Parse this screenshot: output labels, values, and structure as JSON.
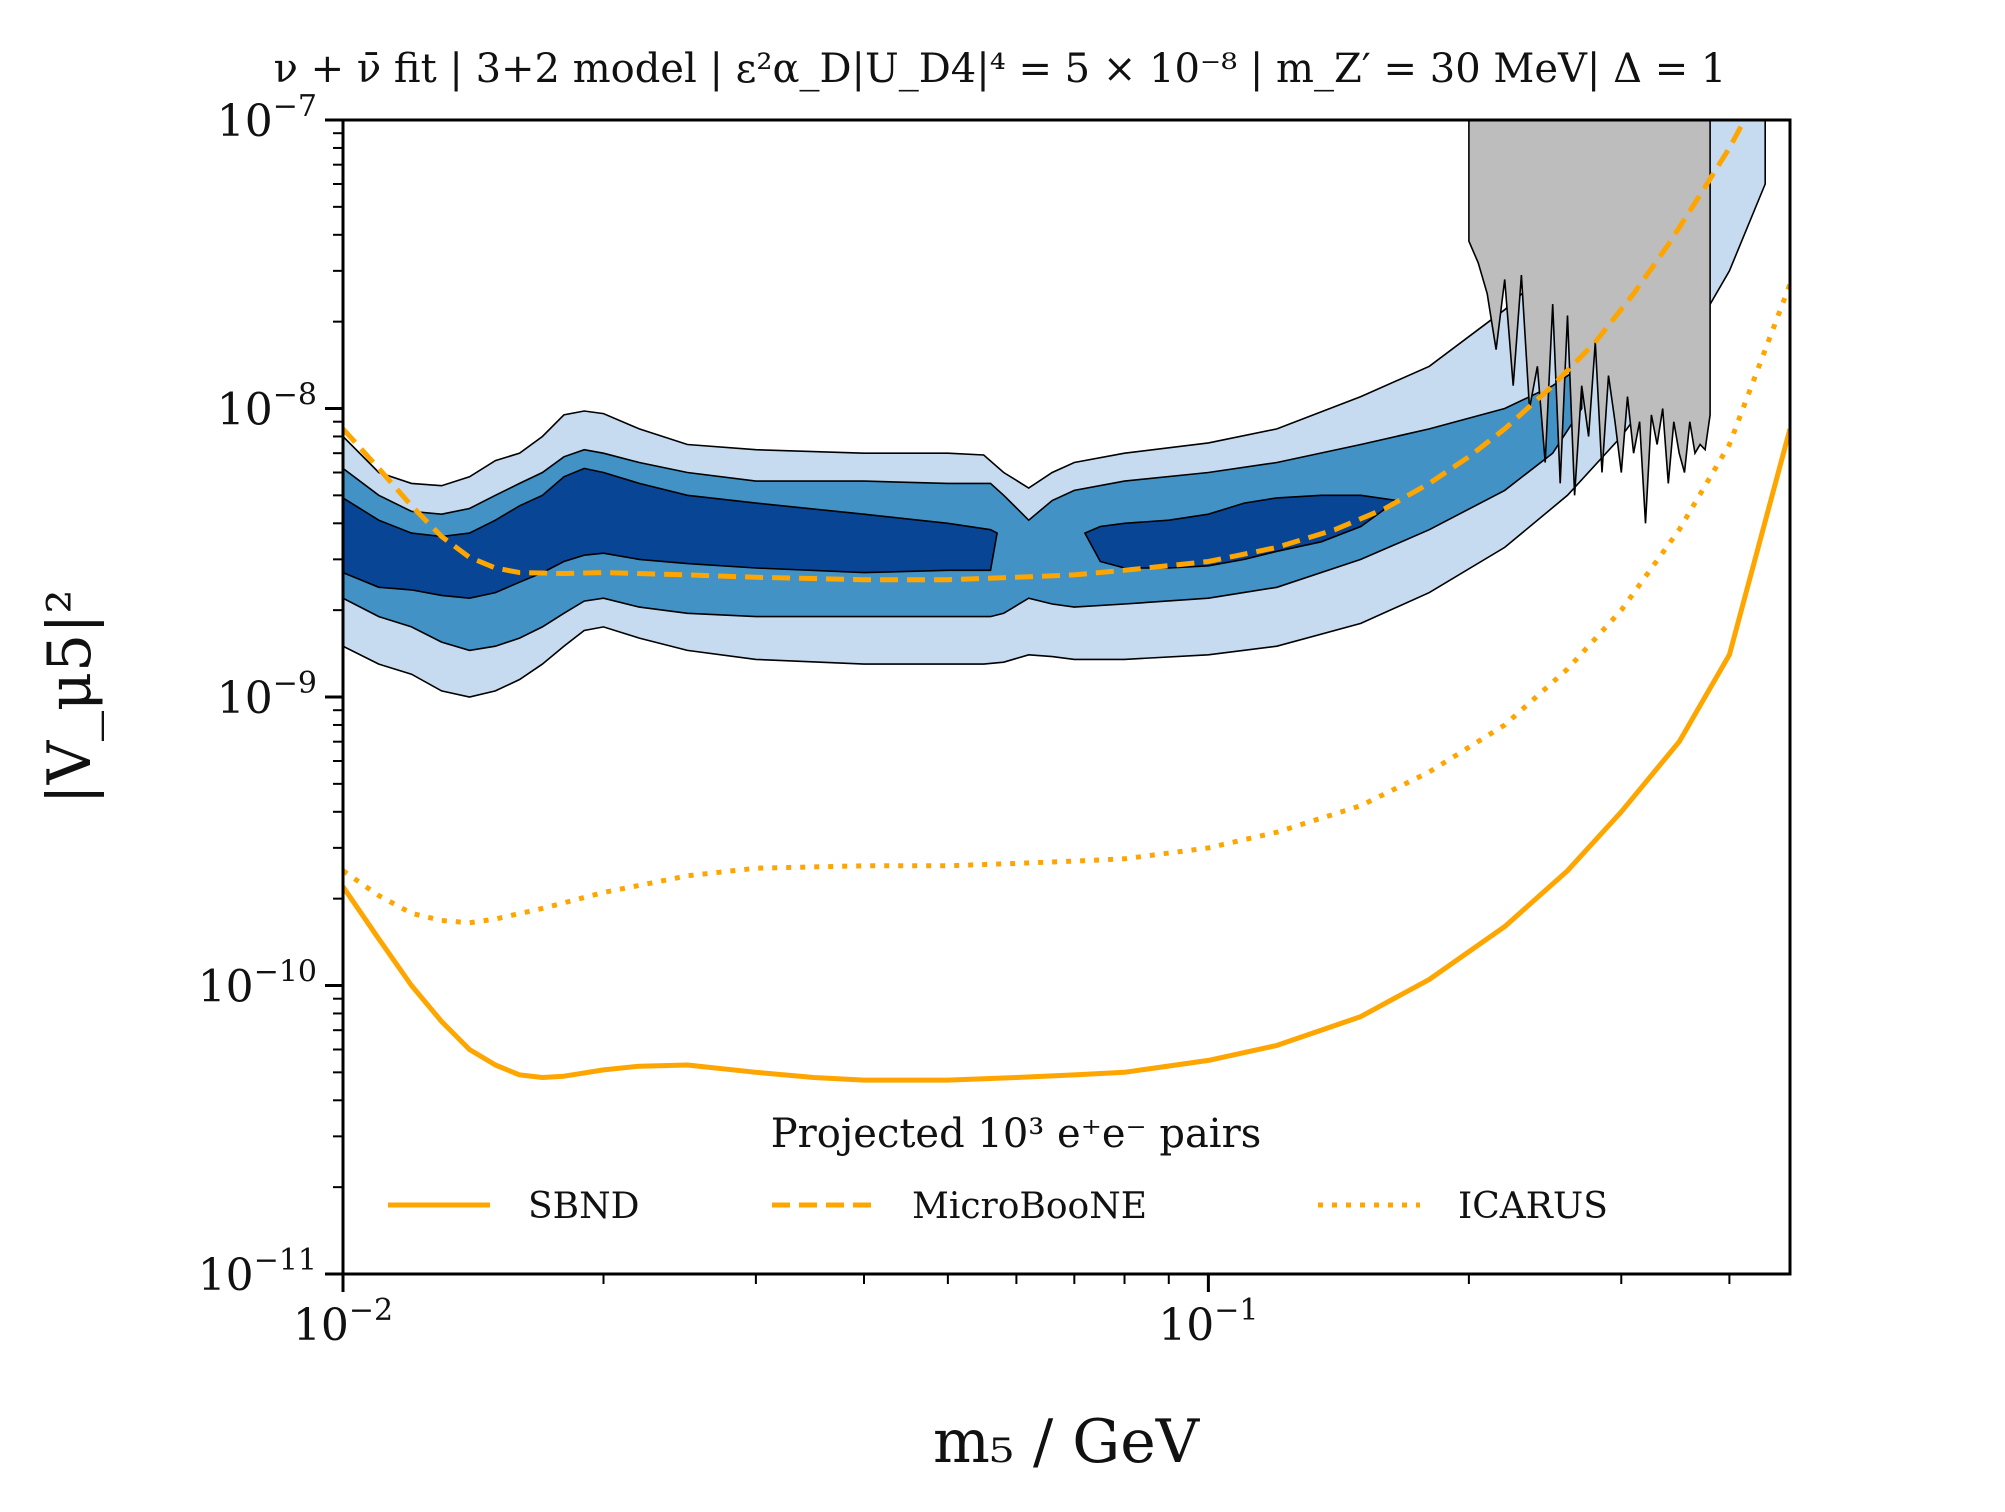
{
  "chart_data": {
    "type": "line",
    "title": "ν + ν̄ fit | 3+2 model | ε²α_D|U_D4|⁴ = 5 × 10⁻⁸ | m_Z′ = 30 MeV| Δ = 1",
    "xlabel": "m₅ / GeV",
    "ylabel": "|V_μ5|²",
    "x_scale": "log",
    "y_scale": "log",
    "xlim": [
      0.01,
      0.47
    ],
    "ylim": [
      1e-11,
      1e-07
    ],
    "x_ticks": [
      {
        "value": 0.01,
        "base": "10",
        "exp": "−2"
      },
      {
        "value": 0.1,
        "base": "10",
        "exp": "−1"
      }
    ],
    "y_ticks": [
      {
        "value": 1e-07,
        "base": "10",
        "exp": "−7"
      },
      {
        "value": 1e-08,
        "base": "10",
        "exp": "−8"
      },
      {
        "value": 1e-09,
        "base": "10",
        "exp": "−9"
      },
      {
        "value": 1e-10,
        "base": "10",
        "exp": "−10"
      },
      {
        "value": 1e-11,
        "base": "10",
        "exp": "−11"
      }
    ],
    "legend": {
      "title": "Projected 10³ e⁺e⁻ pairs",
      "placement": "bottom-center",
      "entries": [
        {
          "label": "SBND",
          "style": "solid"
        },
        {
          "label": "MicroBooNE",
          "style": "dashed"
        },
        {
          "label": "ICARUS",
          "style": "dotted"
        }
      ]
    },
    "colors": {
      "projection": "#ffa500",
      "band_3sigma": "#c6dbef",
      "band_2sigma": "#4292c6",
      "band_1sigma": "#084594",
      "excluded": "#bdbdbd"
    },
    "projections": [
      {
        "name": "SBND",
        "style": "solid",
        "x": [
          0.01,
          0.011,
          0.012,
          0.013,
          0.014,
          0.015,
          0.016,
          0.017,
          0.018,
          0.02,
          0.022,
          0.025,
          0.03,
          0.035,
          0.04,
          0.05,
          0.06,
          0.07,
          0.08,
          0.1,
          0.12,
          0.15,
          0.18,
          0.22,
          0.26,
          0.3,
          0.35,
          0.4,
          0.47
        ],
        "y": [
          2.2e-10,
          1.45e-10,
          1e-10,
          7.5e-11,
          6e-11,
          5.3e-11,
          4.9e-11,
          4.8e-11,
          4.85e-11,
          5.1e-11,
          5.25e-11,
          5.3e-11,
          5e-11,
          4.8e-11,
          4.7e-11,
          4.7e-11,
          4.8e-11,
          4.9e-11,
          5e-11,
          5.5e-11,
          6.2e-11,
          7.8e-11,
          1.05e-10,
          1.6e-10,
          2.5e-10,
          4e-10,
          7e-10,
          1.4e-09,
          8.5e-09
        ]
      },
      {
        "name": "MicroBooNE",
        "style": "dashed",
        "x": [
          0.01,
          0.011,
          0.012,
          0.013,
          0.014,
          0.015,
          0.016,
          0.018,
          0.02,
          0.025,
          0.03,
          0.04,
          0.05,
          0.06,
          0.07,
          0.08,
          0.1,
          0.12,
          0.14,
          0.16,
          0.18,
          0.2,
          0.22,
          0.25,
          0.28,
          0.31,
          0.34,
          0.37,
          0.4,
          0.42
        ],
        "y": [
          8.5e-09,
          6.2e-09,
          4.6e-09,
          3.6e-09,
          3.05e-09,
          2.8e-09,
          2.7e-09,
          2.68e-09,
          2.7e-09,
          2.65e-09,
          2.6e-09,
          2.55e-09,
          2.55e-09,
          2.6e-09,
          2.65e-09,
          2.75e-09,
          2.95e-09,
          3.3e-09,
          3.8e-09,
          4.5e-09,
          5.5e-09,
          6.8e-09,
          8.5e-09,
          1.2e-08,
          1.7e-08,
          2.5e-08,
          3.7e-08,
          5.5e-08,
          8e-08,
          1.05e-07
        ]
      },
      {
        "name": "ICARUS",
        "style": "dotted",
        "x": [
          0.01,
          0.011,
          0.012,
          0.013,
          0.014,
          0.015,
          0.017,
          0.02,
          0.025,
          0.03,
          0.04,
          0.05,
          0.06,
          0.07,
          0.08,
          0.1,
          0.12,
          0.15,
          0.18,
          0.22,
          0.26,
          0.3,
          0.35,
          0.4,
          0.47
        ],
        "y": [
          2.5e-10,
          2.05e-10,
          1.78e-10,
          1.68e-10,
          1.65e-10,
          1.7e-10,
          1.85e-10,
          2.1e-10,
          2.4e-10,
          2.55e-10,
          2.6e-10,
          2.6e-10,
          2.65e-10,
          2.7e-10,
          2.75e-10,
          3e-10,
          3.4e-10,
          4.2e-10,
          5.5e-10,
          8e-10,
          1.25e-09,
          2e-09,
          3.8e-09,
          7.5e-09,
          2.7e-08
        ]
      }
    ],
    "fit_bands": [
      {
        "name": "3sigma",
        "x": [
          0.01,
          0.011,
          0.012,
          0.013,
          0.014,
          0.015,
          0.016,
          0.017,
          0.018,
          0.019,
          0.02,
          0.022,
          0.025,
          0.03,
          0.04,
          0.05,
          0.055,
          0.058,
          0.062,
          0.066,
          0.07,
          0.08,
          0.1,
          0.12,
          0.15,
          0.18,
          0.22,
          0.26,
          0.3,
          0.35,
          0.4,
          0.44
        ],
        "upper": [
          8e-09,
          6e-09,
          5.5e-09,
          5.4e-09,
          5.8e-09,
          6.6e-09,
          7e-09,
          8e-09,
          9.5e-09,
          9.8e-09,
          9.6e-09,
          8.5e-09,
          7.5e-09,
          7.2e-09,
          7e-09,
          7e-09,
          6.9e-09,
          6e-09,
          5.3e-09,
          6e-09,
          6.5e-09,
          7e-09,
          7.6e-09,
          8.5e-09,
          1.1e-08,
          1.4e-08,
          2.2e-08,
          3.5e-08,
          6e-08,
          1e-07,
          1e-07,
          1e-07
        ],
        "lower": [
          1.5e-09,
          1.3e-09,
          1.2e-09,
          1.05e-09,
          1e-09,
          1.05e-09,
          1.15e-09,
          1.3e-09,
          1.5e-09,
          1.7e-09,
          1.75e-09,
          1.6e-09,
          1.45e-09,
          1.35e-09,
          1.3e-09,
          1.3e-09,
          1.3e-09,
          1.32e-09,
          1.4e-09,
          1.38e-09,
          1.35e-09,
          1.35e-09,
          1.4e-09,
          1.5e-09,
          1.8e-09,
          2.3e-09,
          3.3e-09,
          5e-09,
          8e-09,
          1.5e-08,
          3e-08,
          6e-08
        ]
      },
      {
        "name": "2sigma",
        "x": [
          0.01,
          0.011,
          0.012,
          0.013,
          0.014,
          0.015,
          0.016,
          0.017,
          0.018,
          0.019,
          0.02,
          0.022,
          0.025,
          0.03,
          0.04,
          0.05,
          0.056,
          0.058,
          0.062,
          0.066,
          0.07,
          0.08,
          0.1,
          0.12,
          0.15,
          0.18,
          0.22,
          0.25,
          0.27
        ],
        "upper": [
          6.2e-09,
          5e-09,
          4.4e-09,
          4.3e-09,
          4.5e-09,
          5e-09,
          5.5e-09,
          6e-09,
          6.8e-09,
          7.2e-09,
          7e-09,
          6.5e-09,
          6e-09,
          5.6e-09,
          5.6e-09,
          5.5e-09,
          5.5e-09,
          5e-09,
          4.1e-09,
          4.8e-09,
          5.2e-09,
          5.6e-09,
          6e-09,
          6.5e-09,
          7.5e-09,
          8.5e-09,
          1e-08,
          1.2e-08,
          1.4e-08
        ],
        "lower": [
          2.2e-09,
          1.9e-09,
          1.75e-09,
          1.55e-09,
          1.45e-09,
          1.5e-09,
          1.6e-09,
          1.75e-09,
          1.95e-09,
          2.15e-09,
          2.2e-09,
          2.05e-09,
          1.95e-09,
          1.9e-09,
          1.9e-09,
          1.9e-09,
          1.9e-09,
          1.95e-09,
          2.2e-09,
          2.1e-09,
          2.05e-09,
          2.1e-09,
          2.2e-09,
          2.4e-09,
          3e-09,
          3.8e-09,
          5.2e-09,
          7e-09,
          1e-08
        ]
      },
      {
        "name": "1sigma_a",
        "x": [
          0.01,
          0.011,
          0.012,
          0.013,
          0.014,
          0.015,
          0.016,
          0.017,
          0.018,
          0.019,
          0.02,
          0.022,
          0.025,
          0.03,
          0.04,
          0.05,
          0.056,
          0.057
        ],
        "upper": [
          4.9e-09,
          4.1e-09,
          3.7e-09,
          3.6e-09,
          3.7e-09,
          4.1e-09,
          4.6e-09,
          5e-09,
          5.8e-09,
          6.2e-09,
          6e-09,
          5.5e-09,
          5e-09,
          4.7e-09,
          4.3e-09,
          4e-09,
          3.8e-09,
          3.7e-09
        ],
        "lower": [
          2.7e-09,
          2.4e-09,
          2.35e-09,
          2.25e-09,
          2.2e-09,
          2.3e-09,
          2.5e-09,
          2.7e-09,
          2.95e-09,
          3.1e-09,
          3.15e-09,
          3e-09,
          2.9e-09,
          2.8e-09,
          2.7e-09,
          2.75e-09,
          2.75e-09,
          3.7e-09
        ]
      },
      {
        "name": "1sigma_b",
        "x": [
          0.072,
          0.075,
          0.08,
          0.09,
          0.1,
          0.11,
          0.12,
          0.135,
          0.15,
          0.165
        ],
        "upper": [
          3.7e-09,
          3.9e-09,
          4e-09,
          4.1e-09,
          4.3e-09,
          4.7e-09,
          4.9e-09,
          5e-09,
          5e-09,
          4.8e-09
        ],
        "lower": [
          3.7e-09,
          2.95e-09,
          2.8e-09,
          2.8e-09,
          2.85e-09,
          3e-09,
          3.2e-09,
          3.45e-09,
          3.9e-09,
          4.8e-09
        ]
      }
    ],
    "excluded_region": {
      "name": "existing constraint",
      "x": [
        0.2,
        0.2,
        0.205,
        0.21,
        0.215,
        0.22,
        0.225,
        0.23,
        0.235,
        0.24,
        0.245,
        0.25,
        0.255,
        0.26,
        0.265,
        0.27,
        0.275,
        0.28,
        0.285,
        0.29,
        0.295,
        0.3,
        0.305,
        0.31,
        0.315,
        0.32,
        0.325,
        0.33,
        0.335,
        0.34,
        0.345,
        0.35,
        0.355,
        0.36,
        0.365,
        0.37,
        0.375,
        0.38,
        0.38
      ],
      "y": [
        1e-07,
        3.8e-08,
        3.2e-08,
        2.5e-08,
        1.6e-08,
        2.8e-08,
        1.2e-08,
        2.9e-08,
        1e-08,
        1.4e-08,
        6.5e-09,
        2.3e-08,
        5.5e-09,
        2.1e-08,
        5e-09,
        1.2e-08,
        8e-09,
        1.7e-08,
        6e-09,
        1.3e-08,
        9e-09,
        6e-09,
        1.1e-08,
        7e-09,
        9e-09,
        4e-09,
        9.5e-09,
        7.5e-09,
        1e-08,
        5.5e-09,
        9e-09,
        7e-09,
        6e-09,
        9e-09,
        7e-09,
        7.5e-09,
        7.2e-09,
        9.5e-09,
        1e-07
      ]
    }
  }
}
